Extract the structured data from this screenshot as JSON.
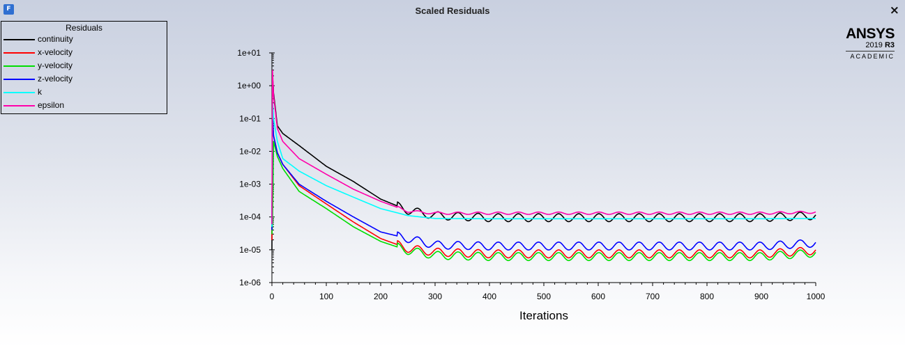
{
  "window": {
    "title": "Scaled Residuals",
    "app_icon": "F",
    "close_symbol": "×"
  },
  "legend": {
    "title": "Residuals",
    "items": [
      {
        "label": "continuity",
        "color": "#000000"
      },
      {
        "label": "x-velocity",
        "color": "#ff0000"
      },
      {
        "label": "y-velocity",
        "color": "#00dd00"
      },
      {
        "label": "z-velocity",
        "color": "#0000ff"
      },
      {
        "label": "k",
        "color": "#00ffff"
      },
      {
        "label": "epsilon",
        "color": "#ff00aa"
      }
    ]
  },
  "logo": {
    "name": "ANSYS",
    "year": "2019",
    "release": "R3",
    "edition": "ACADEMIC"
  },
  "icons": {
    "app": "fluent-app-icon",
    "close": "close-icon"
  },
  "chart_data": {
    "type": "line",
    "xlabel": "Iterations",
    "ylabel": "",
    "yscale": "log",
    "xlim": [
      0,
      1000
    ],
    "ylim": [
      1e-06,
      10
    ],
    "xticks": [
      "0",
      "100",
      "200",
      "300",
      "400",
      "500",
      "600",
      "700",
      "800",
      "900",
      "1000"
    ],
    "yticks": [
      "1e-06",
      "1e-05",
      "1e-04",
      "1e-03",
      "1e-02",
      "1e-01",
      "1e+00",
      "1e+01"
    ],
    "grid": false,
    "legend_position": "top-left",
    "series": [
      {
        "name": "continuity",
        "color": "#000000",
        "x": [
          1,
          3,
          10,
          20,
          50,
          100,
          150,
          200,
          250,
          300,
          400,
          500,
          600,
          700,
          800,
          900,
          1000
        ],
        "y": [
          2.0,
          0.6,
          0.06,
          0.035,
          0.015,
          0.0035,
          0.0012,
          0.00035,
          0.00016,
          0.00011,
          9.5e-05,
          9.5e-05,
          9.5e-05,
          9.5e-05,
          9.5e-05,
          9.5e-05,
          0.00011
        ]
      },
      {
        "name": "x-velocity",
        "color": "#ff0000",
        "x": [
          1,
          3,
          10,
          20,
          50,
          100,
          150,
          200,
          250,
          300,
          400,
          500,
          600,
          700,
          800,
          900,
          1000
        ],
        "y": [
          0.15,
          0.03,
          0.009,
          0.004,
          0.0009,
          0.00025,
          7e-05,
          2.2e-05,
          1.1e-05,
          8.5e-06,
          7.5e-06,
          7.5e-06,
          7.5e-06,
          7.5e-06,
          7.5e-06,
          7.5e-06,
          9.5e-06
        ]
      },
      {
        "name": "y-velocity",
        "color": "#00dd00",
        "x": [
          1,
          3,
          10,
          20,
          50,
          100,
          150,
          200,
          250,
          300,
          400,
          500,
          600,
          700,
          800,
          900,
          1000
        ],
        "y": [
          6e-05,
          0.02,
          0.007,
          0.003,
          0.0006,
          0.00018,
          5e-05,
          1.8e-05,
          9.5e-06,
          6.8e-06,
          6.2e-06,
          6.2e-06,
          6.2e-06,
          6.2e-06,
          6.2e-06,
          6.2e-06,
          8e-06
        ]
      },
      {
        "name": "z-velocity",
        "color": "#0000ff",
        "x": [
          1,
          3,
          10,
          20,
          50,
          100,
          150,
          200,
          250,
          300,
          400,
          500,
          600,
          700,
          800,
          900,
          1000
        ],
        "y": [
          0.12,
          0.03,
          0.009,
          0.004,
          0.001,
          0.0003,
          0.0001,
          3.5e-05,
          2.2e-05,
          1.4e-05,
          1.3e-05,
          1.3e-05,
          1.3e-05,
          1.3e-05,
          1.3e-05,
          1.3e-05,
          1.6e-05
        ]
      },
      {
        "name": "k",
        "color": "#00ffff",
        "x": [
          1,
          3,
          10,
          20,
          50,
          100,
          150,
          200,
          250,
          300,
          400,
          500,
          600,
          700,
          800,
          900,
          1000
        ],
        "y": [
          0.3,
          0.1,
          0.02,
          0.006,
          0.0025,
          0.0009,
          0.0004,
          0.00018,
          0.00011,
          9e-05,
          8.8e-05,
          8.8e-05,
          8.8e-05,
          8.8e-05,
          8.8e-05,
          8.8e-05,
          9e-05
        ]
      },
      {
        "name": "epsilon",
        "color": "#ff00aa",
        "x": [
          1,
          3,
          10,
          20,
          50,
          100,
          150,
          200,
          250,
          300,
          400,
          500,
          600,
          700,
          800,
          900,
          1000
        ],
        "y": [
          3.0,
          0.5,
          0.05,
          0.02,
          0.006,
          0.002,
          0.0007,
          0.0003,
          0.00015,
          0.00013,
          0.00013,
          0.00013,
          0.00013,
          0.00013,
          0.00013,
          0.00013,
          0.00014
        ]
      }
    ]
  }
}
